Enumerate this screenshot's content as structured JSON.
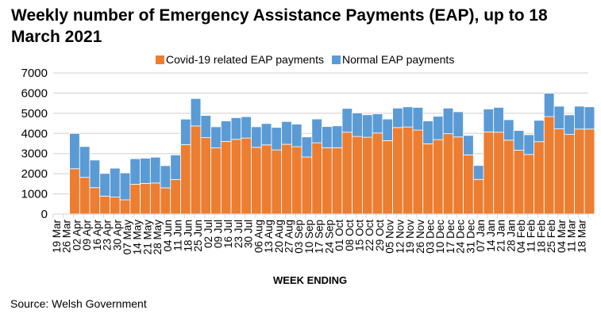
{
  "chart_data": {
    "type": "bar",
    "stacked": true,
    "title": "Weekly number of Emergency Assistance Payments (EAP), up to 18 March 2021",
    "xlabel": "WEEK ENDING",
    "ylabel": "",
    "ylim": [
      0,
      7000
    ],
    "yticks": [
      0,
      1000,
      2000,
      3000,
      4000,
      5000,
      6000,
      7000
    ],
    "grid": true,
    "legend_position": "top",
    "categories": [
      "19 Mar",
      "26 Mar",
      "02 Apr",
      "09 Apr",
      "16 Apr",
      "23 Apr",
      "30 Apr",
      "07 May",
      "14 May",
      "21 May",
      "28 May",
      "04 Jun",
      "11 Jun",
      "18 Jun",
      "25 Jun",
      "02 Jul",
      "09 Jul",
      "16 Jul",
      "23 Jul",
      "30 Jul",
      "06 Aug",
      "13 Aug",
      "20 Aug",
      "27 Aug",
      "03 Sep",
      "10 Sep",
      "17 Sep",
      "24 Sep",
      "01 Oct",
      "08 Oct",
      "15 Oct",
      "22 Oct",
      "29 Oct",
      "05 Nov",
      "12 Nov",
      "19 Nov",
      "26 Nov",
      "03 Dec",
      "10 Dec",
      "17 Dec",
      "24 Dec",
      "31 Dec",
      "07 Jan",
      "14 Jan",
      "21 Jan",
      "28 Jan",
      "04 Feb",
      "11 Feb",
      "18 Feb",
      "25 Feb",
      "04 Mar",
      "11 Mar",
      "18 Mar"
    ],
    "series": [
      {
        "name": "Covid-19 related EAP payments",
        "color": "#ed7d31",
        "values": [
          null,
          2250,
          1820,
          1310,
          890,
          840,
          705,
          1480,
          1520,
          1540,
          1300,
          1710,
          3440,
          4370,
          3790,
          3280,
          3600,
          3705,
          3770,
          3310,
          3430,
          3180,
          3460,
          3340,
          2830,
          3535,
          3290,
          3290,
          4060,
          3850,
          3810,
          4020,
          3640,
          4290,
          4320,
          4165,
          3485,
          3690,
          3985,
          3825,
          2935,
          1720,
          4075,
          4060,
          3665,
          3165,
          2955,
          3590,
          4835,
          4225,
          3950,
          4215,
          4215
        ]
      },
      {
        "name": "Normal EAP payments",
        "color": "#5b9bd5",
        "values": [
          null,
          1750,
          1530,
          1370,
          1125,
          1435,
          1335,
          1265,
          1250,
          1280,
          1100,
          1220,
          1270,
          1360,
          1100,
          1050,
          1020,
          1075,
          1060,
          1020,
          1060,
          1120,
          1130,
          1120,
          995,
          1180,
          1050,
          1085,
          1180,
          1165,
          1115,
          950,
          1075,
          965,
          1000,
          1125,
          1135,
          1160,
          1270,
          1250,
          965,
          690,
          1135,
          1230,
          1015,
          980,
          980,
          1060,
          1160,
          1125,
          970,
          1135,
          1105
        ]
      }
    ],
    "source": "Source: Welsh Government"
  }
}
